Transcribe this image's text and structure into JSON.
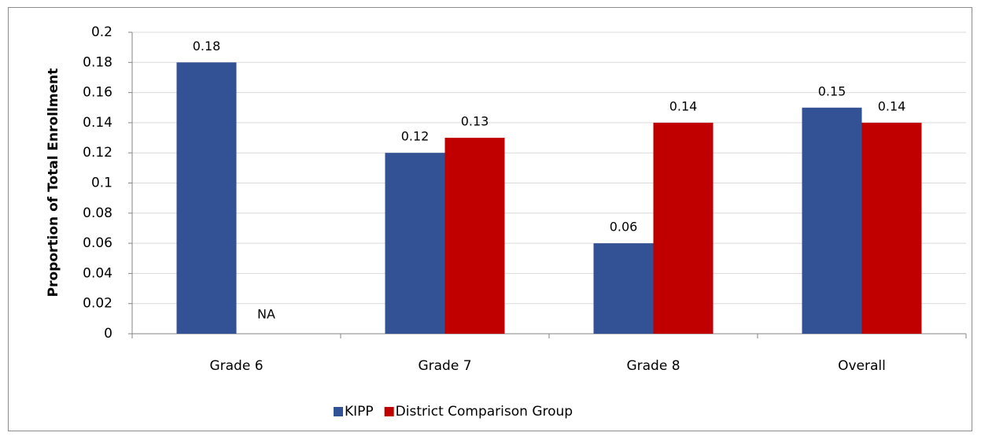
{
  "chart_data": {
    "type": "bar",
    "y_label": "Proportion of Total Enrollment",
    "categories": [
      "Grade 6",
      "Grade 7",
      "Grade 8",
      "Overall"
    ],
    "series": [
      {
        "name": "KIPP",
        "color": "#335195",
        "values": [
          0.18,
          0.12,
          0.06,
          0.15
        ]
      },
      {
        "name": "District Comparison Group",
        "color": "#c00000",
        "values": [
          null,
          0.13,
          0.14,
          0.14
        ],
        "value_labels": [
          "NA",
          "0.13",
          "0.14",
          "0.14"
        ]
      }
    ],
    "ylim": [
      0,
      0.2
    ],
    "yticks": [
      0,
      0.02,
      0.04,
      0.06,
      0.08,
      0.1,
      0.12,
      0.14,
      0.16,
      0.18,
      0.2
    ],
    "grid": true,
    "legend": "bottom"
  }
}
